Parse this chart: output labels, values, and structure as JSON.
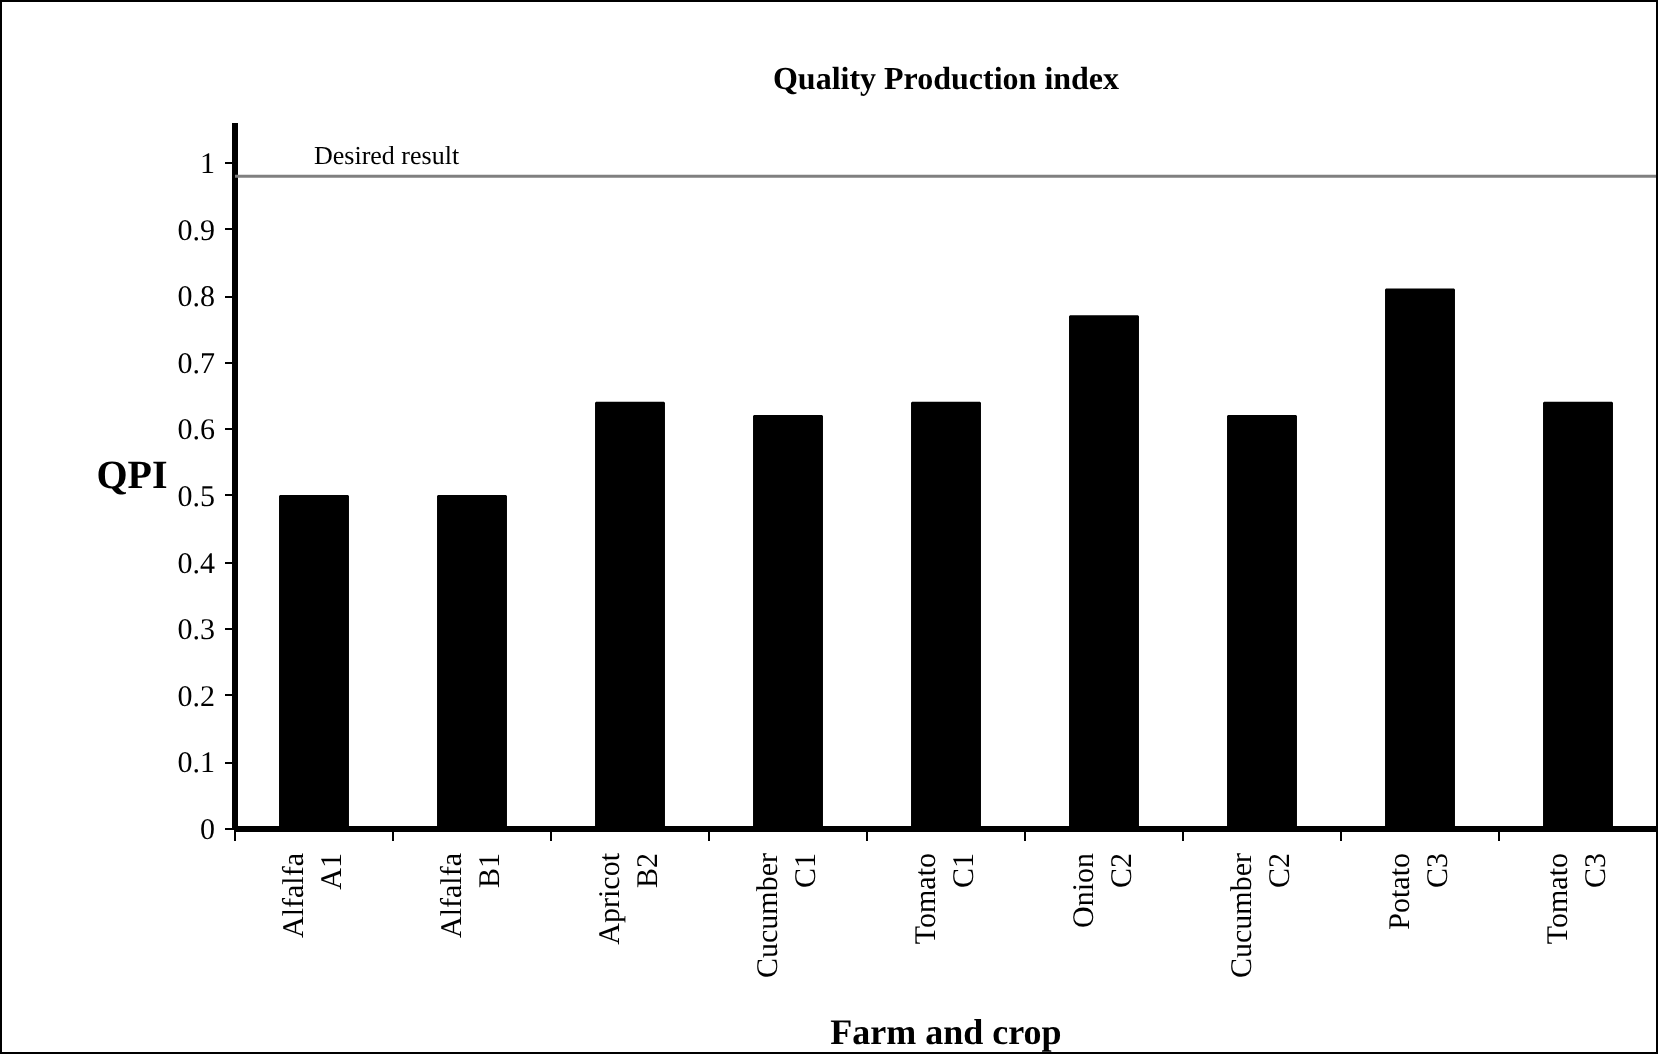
{
  "chart_data": {
    "type": "bar",
    "title": "Quality Production index",
    "xlabel": "Farm and crop",
    "ylabel": "QPI",
    "categories": [
      "Alfalfa\nA1",
      "Alfalfa\nB1",
      "Apricot\nB2",
      "Cucumber\nC1",
      "Tomato\nC1",
      "Onion\nC2",
      "Cucumber\nC2",
      "Potato\nC3",
      "Tomato\nC3"
    ],
    "values": [
      0.5,
      0.5,
      0.64,
      0.62,
      0.64,
      0.77,
      0.62,
      0.81,
      0.64
    ],
    "color": "#000000",
    "ylim": [
      0,
      1.06
    ],
    "yticks": [
      0,
      0.1,
      0.2,
      0.3,
      0.4,
      0.5,
      0.6,
      0.7,
      0.8,
      0.9,
      1
    ],
    "ref_lines": [
      {
        "axis": "y",
        "value": 0.98,
        "label": "Desired result",
        "color": "#808080"
      }
    ],
    "grid": false
  }
}
